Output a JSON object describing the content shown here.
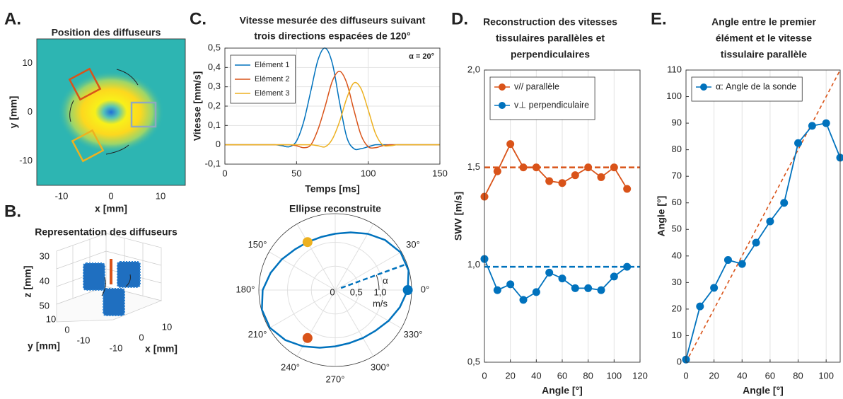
{
  "chart_data": [
    {
      "type": "heatmap",
      "panel": "A.",
      "title": [
        "Position des diffuseurs"
      ],
      "xlabel": "x [mm]",
      "ylabel": "y [mm]",
      "xlim": [
        -15,
        15
      ],
      "ylim": [
        -15,
        15
      ],
      "xticks": [
        -10,
        0,
        10
      ],
      "yticks": [
        -10,
        0,
        10
      ]
    },
    {
      "type": "3d",
      "panel": "B.",
      "title": [
        "Representation des diffuseurs"
      ],
      "xlabel": "x [mm]",
      "ylabel": "y [mm]",
      "zlabel": "z [mm]",
      "xticks": [
        -10,
        0,
        10
      ],
      "yticks": [
        -10,
        0,
        10
      ],
      "zticks": [
        30,
        40,
        50
      ]
    },
    {
      "type": "line",
      "panel": "C.",
      "title": [
        "Vitesse mesurée des diffuseurs suivant",
        "trois directions espacées de 120°"
      ],
      "xlabel": "Temps [ms]",
      "ylabel": "Vitesse [mm/s]",
      "annotation": "α = 20°",
      "x": [
        0,
        5,
        10,
        15,
        20,
        25,
        30,
        35,
        40,
        45,
        50,
        55,
        60,
        65,
        70,
        75,
        80,
        85,
        90,
        95,
        100,
        105,
        110,
        115,
        120,
        125,
        130,
        135,
        140,
        145,
        150
      ],
      "series": [
        {
          "name": "Elément 1",
          "color": "#0072bd",
          "values": [
            0,
            0,
            0,
            0,
            0,
            0,
            0,
            0,
            -0.005,
            -0.01,
            0.02,
            0.12,
            0.28,
            0.44,
            0.5,
            0.42,
            0.22,
            0.04,
            -0.02,
            -0.02,
            -0.01,
            0,
            0,
            0,
            0,
            0,
            0,
            0,
            0,
            0,
            0
          ]
        },
        {
          "name": "Elément 2",
          "color": "#d95319",
          "values": [
            0,
            0,
            0,
            0,
            0,
            0,
            0,
            0,
            0,
            0,
            -0.005,
            -0.015,
            0,
            0.08,
            0.2,
            0.33,
            0.38,
            0.32,
            0.18,
            0.05,
            -0.01,
            -0.015,
            -0.005,
            0,
            0,
            0,
            0,
            0,
            0,
            0,
            0
          ]
        },
        {
          "name": "Elément 3",
          "color": "#edb120",
          "values": [
            0,
            0,
            0,
            0,
            0,
            0,
            0,
            0,
            0,
            0,
            0,
            0,
            0,
            -0.005,
            -0.01,
            0.03,
            0.12,
            0.24,
            0.32,
            0.29,
            0.18,
            0.06,
            0,
            -0.005,
            0,
            0,
            0,
            0,
            0,
            0,
            0
          ]
        }
      ],
      "xlim": [
        0,
        150
      ],
      "ylim": [
        -0.1,
        0.5
      ],
      "xticks": [
        0,
        50,
        100,
        150
      ],
      "yticks": [
        {
          "value": -0.1,
          "label": "-0,1"
        },
        0,
        {
          "value": 0.1,
          "label": "0,1"
        },
        {
          "value": 0.2,
          "label": "0,2"
        },
        {
          "value": 0.3,
          "label": "0,3"
        },
        {
          "value": 0.4,
          "label": "0,4"
        },
        {
          "value": 0.5,
          "label": "0,5"
        }
      ],
      "grid": true,
      "smooth": true,
      "markers": false,
      "legend": "upper left"
    },
    {
      "type": "polar",
      "title": [
        "Ellipse reconstruite"
      ],
      "alpha_label": "α",
      "major_axis_angle": 20,
      "r_unit": "m/s",
      "theta": [
        0,
        15,
        30,
        45,
        60,
        75,
        90,
        105,
        120,
        135,
        150,
        165,
        180,
        195,
        210,
        225,
        240,
        255,
        270,
        285,
        300,
        315,
        330,
        345
      ],
      "r": [
        1.52,
        1.59,
        1.58,
        1.48,
        1.36,
        1.25,
        1.18,
        1.15,
        1.16,
        1.2,
        1.29,
        1.4,
        1.52,
        1.59,
        1.58,
        1.48,
        1.36,
        1.25,
        1.18,
        1.15,
        1.16,
        1.2,
        1.29,
        1.4
      ],
      "color": "#0072bd",
      "points": {
        "theta": [
          0,
          120,
          240
        ],
        "r": [
          1.52,
          1.16,
          1.16
        ],
        "colors": [
          "#0072bd",
          "#edb120",
          "#d95319"
        ]
      },
      "rlim": [
        0,
        1.6
      ],
      "rticks": [
        0,
        {
          "value": 0.5,
          "label": "0,5"
        },
        {
          "value": 1,
          "label": "1,0"
        }
      ],
      "theta_ticks": [
        {
          "value": 0,
          "label": "0°"
        },
        {
          "value": 30,
          "label": "30°"
        },
        {
          "value": 60,
          "label": ""
        },
        {
          "value": 90,
          "label": ""
        },
        {
          "value": 120,
          "label": ""
        },
        {
          "value": 150,
          "label": "150°"
        },
        {
          "value": 180,
          "label": "180°"
        },
        {
          "value": 210,
          "label": "210°"
        },
        {
          "value": 240,
          "label": "240°"
        },
        {
          "value": 270,
          "label": "270°"
        },
        {
          "value": 300,
          "label": "300°"
        },
        {
          "value": 330,
          "label": "330°"
        }
      ]
    },
    {
      "type": "line",
      "panel": "D.",
      "title": [
        "Reconstruction des vitesses",
        "tissulaires parallèles et",
        "perpendiculaires"
      ],
      "xlabel": "Angle [°]",
      "ylabel": "SWV [m/s]",
      "x": [
        0,
        10,
        20,
        30,
        40,
        50,
        60,
        70,
        80,
        90,
        100,
        110
      ],
      "series": [
        {
          "name": "v// parallèle",
          "color": "#d95319",
          "values": [
            1.35,
            1.48,
            1.62,
            1.5,
            1.5,
            1.43,
            1.42,
            1.46,
            1.5,
            1.45,
            1.5,
            1.39
          ]
        },
        {
          "name": "v⊥ perpendiculaire",
          "color": "#0072bd",
          "values": [
            1.03,
            0.87,
            0.9,
            0.82,
            0.86,
            0.96,
            0.93,
            0.88,
            0.88,
            0.87,
            0.94,
            0.99
          ]
        }
      ],
      "hlines": [
        {
          "value": 1.5,
          "color": "#d95319"
        },
        {
          "value": 0.99,
          "color": "#0072bd"
        }
      ],
      "xlim": [
        0,
        120
      ],
      "ylim": [
        0.5,
        2
      ],
      "xticks": [
        0,
        20,
        40,
        60,
        80,
        100,
        120
      ],
      "yticks": [
        {
          "value": 0.5,
          "label": "0,5"
        },
        {
          "value": 1,
          "label": "1,0"
        },
        {
          "value": 1.5,
          "label": "1,5"
        },
        {
          "value": 2,
          "label": "2,0"
        }
      ],
      "grid_x": true,
      "markers": true,
      "legend": "upper left"
    },
    {
      "type": "line",
      "panel": "E.",
      "title": [
        "Angle entre le premier",
        "élément et le vitesse",
        "tissulaire parallèle"
      ],
      "xlabel": "Angle [°]",
      "ylabel": "Angle [°]",
      "x": [
        0,
        10,
        20,
        30,
        40,
        50,
        60,
        70,
        80,
        90,
        100,
        110
      ],
      "series": [
        {
          "name": "α: Angle de la sonde",
          "color": "#0072bd",
          "values": [
            1,
            21,
            28,
            38.5,
            37,
            45,
            53,
            60,
            82.5,
            89,
            90,
            77
          ]
        }
      ],
      "diagonal": true,
      "diagonal_color": "#d95319",
      "xlim": [
        0,
        110
      ],
      "ylim": [
        0,
        110
      ],
      "xticks": [
        0,
        20,
        40,
        60,
        80,
        100
      ],
      "yticks": [
        0,
        10,
        20,
        30,
        40,
        50,
        60,
        70,
        80,
        90,
        100,
        110
      ],
      "grid_x": true,
      "markers": true,
      "legend": "upper left"
    }
  ]
}
